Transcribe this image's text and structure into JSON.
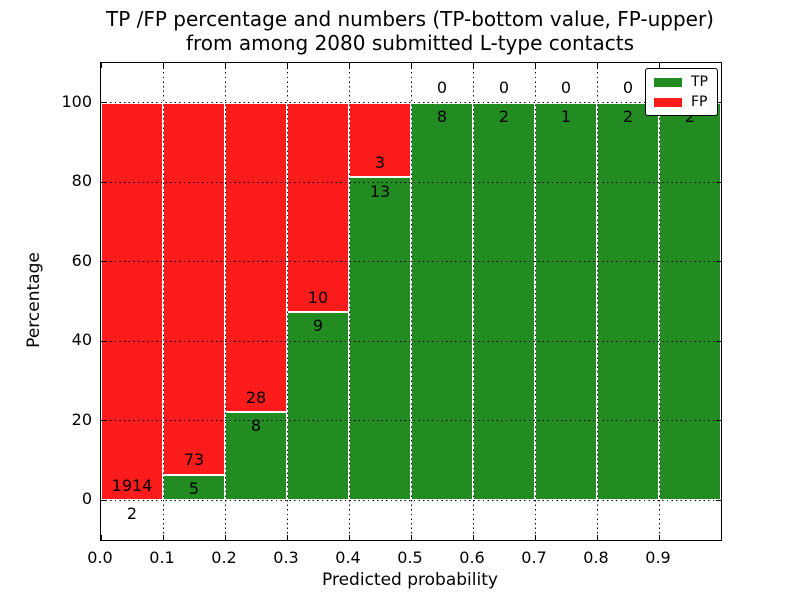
{
  "figure": {
    "title_line1": "TP /FP percentage and numbers (TP-bottom value, FP-upper)",
    "title_line2": "from among 2080 submitted L-type contacts"
  },
  "chart_data": {
    "type": "bar",
    "stacked": true,
    "title": "TP /FP percentage and numbers (TP-bottom value, FP-upper) from among 2080 submitted L-type contacts",
    "xlabel": "Predicted probability",
    "ylabel": "Percentage",
    "xlim": [
      0.0,
      1.0
    ],
    "ylim": [
      -10,
      110
    ],
    "bin_width": 0.1,
    "bin_ranges": [
      "0.0-0.1",
      "0.1-0.2",
      "0.2-0.3",
      "0.3-0.4",
      "0.4-0.5",
      "0.5-0.6",
      "0.6-0.7",
      "0.7-0.8",
      "0.8-0.9",
      "0.9-1.0"
    ],
    "x_tick_labels": [
      "0.0",
      "0.1",
      "0.2",
      "0.3",
      "0.4",
      "0.5",
      "0.6",
      "0.7",
      "0.8",
      "0.9"
    ],
    "y_tick_values": [
      0,
      20,
      40,
      60,
      80,
      100
    ],
    "series": [
      {
        "name": "TP",
        "color": "#228b22",
        "counts": [
          2,
          5,
          8,
          9,
          13,
          8,
          2,
          1,
          2,
          2
        ]
      },
      {
        "name": "FP",
        "color": "#fc1c1c",
        "counts": [
          1914,
          73,
          28,
          10,
          3,
          0,
          0,
          0,
          0,
          0
        ]
      }
    ],
    "bar_edge_color": "#ffffff",
    "grid": {
      "on": true,
      "style": "dotted",
      "color": "#000000"
    },
    "legend": {
      "position": "upper right",
      "entries": [
        "TP",
        "FP"
      ]
    },
    "annotation_note": "TP-bottom value, FP-upper"
  }
}
